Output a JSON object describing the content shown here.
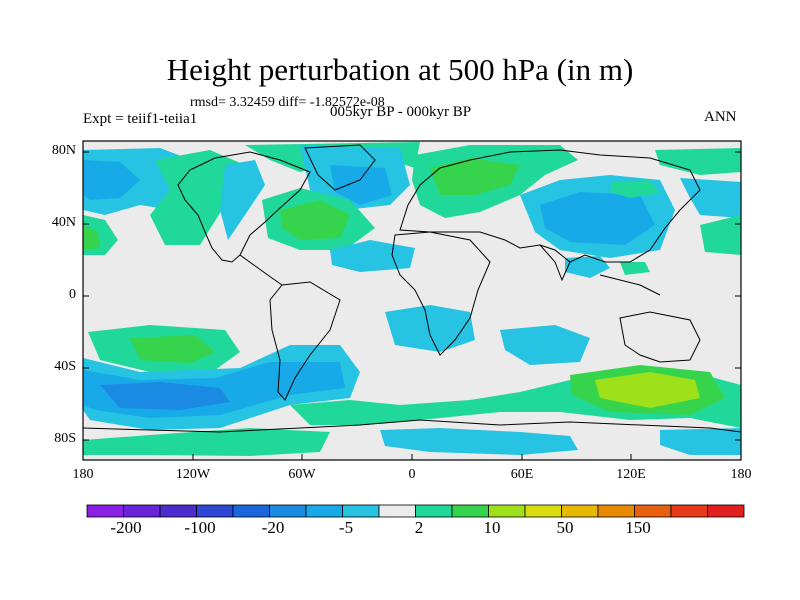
{
  "title": "Height perturbation at 500 hPa (in m)",
  "stats": "rmsd= 3.32459 diff= -1.82572e-08",
  "experiment": "Expt = teiif1-teiia1",
  "period": "005kyr BP - 000kyr BP",
  "season": "ANN",
  "map": {
    "lat_ticks": [
      "80N",
      "40N",
      "0",
      "40S",
      "80S"
    ],
    "lon_ticks": [
      "180",
      "120W",
      "60W",
      "0",
      "60E",
      "120E",
      "180"
    ]
  },
  "colorbar": {
    "labels": [
      "-200",
      "-100",
      "-20",
      "-5",
      "2",
      "10",
      "50",
      "150"
    ],
    "colors": [
      "#8a1fe6",
      "#6b22d9",
      "#4b2ccf",
      "#2c46d6",
      "#1a66dd",
      "#1a8ae2",
      "#18aae8",
      "#26c3e3",
      "#ebebeb",
      "#20d89a",
      "#36d44c",
      "#9ee01a",
      "#d8dc10",
      "#e6b800",
      "#e88a00",
      "#e85f10",
      "#e63a18",
      "#e31e1e"
    ]
  },
  "palette": {
    "background": "#ebebeb",
    "light_green": "#20d89a",
    "green": "#36d44c",
    "lime": "#9ee01a",
    "cyan": "#26c3e3",
    "light_blue": "#18aae8",
    "blue": "#1a8ae2"
  }
}
